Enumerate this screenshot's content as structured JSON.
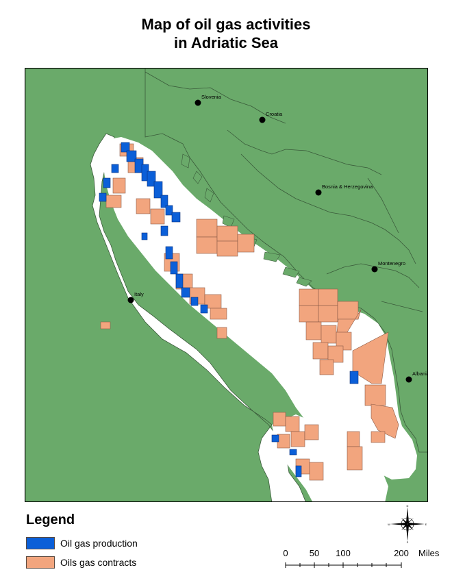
{
  "title": {
    "line1": "Map of oil gas activities",
    "line2": "in Adriatic Sea"
  },
  "colors": {
    "land": "#6aaa6a",
    "sea": "#ffffff",
    "oil_gas_production": "#0b5fd8",
    "oil_gas_contracts": "#f2a57e",
    "borders": "#3a5a3a"
  },
  "places": [
    {
      "name": "Slovenia"
    },
    {
      "name": "Croatia"
    },
    {
      "name": "Bosnia & Herzegovina"
    },
    {
      "name": "Montenegro"
    },
    {
      "name": "Italy"
    },
    {
      "name": "Albania"
    }
  ],
  "legend": {
    "title": "Legend",
    "items": [
      {
        "label": "Oil gas production",
        "color": "#0b5fd8"
      },
      {
        "label": "Oils gas contracts",
        "color": "#f2a57e"
      }
    ]
  },
  "scale_bar": {
    "ticks": [
      "0",
      "50",
      "100",
      "200"
    ],
    "unit": "Miles"
  },
  "compass": {
    "n": "N",
    "s": "S",
    "e": "E",
    "w": "W"
  }
}
